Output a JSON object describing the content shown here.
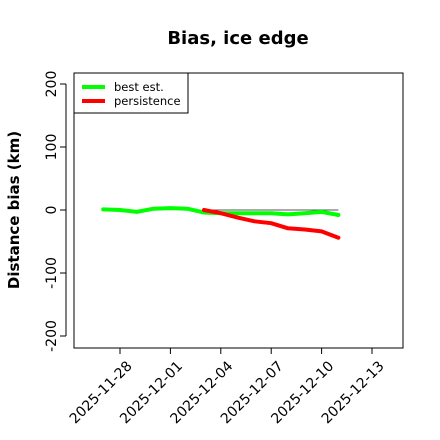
{
  "chart_data": {
    "type": "line",
    "title": "Bias, ice edge",
    "xlabel": "",
    "ylabel": "Distance bias (km)",
    "ylim": [
      -210,
      210
    ],
    "xlim": [
      "2025-11-25",
      "2025-12-14"
    ],
    "y_ticks": [
      -200,
      -100,
      0,
      100,
      200
    ],
    "y_tick_labels": [
      "-200",
      "-100",
      "0",
      "100",
      "200"
    ],
    "x_ticks": [
      "2025-11-28",
      "2025-12-01",
      "2025-12-04",
      "2025-12-07",
      "2025-12-10",
      "2025-12-13"
    ],
    "x_tick_labels": [
      "2025-11-28",
      "2025-12-01",
      "2025-12-04",
      "2025-12-07",
      "2025-12-10",
      "2025-12-13"
    ],
    "reference_line": {
      "y": 0,
      "x_from": "2025-12-03",
      "x_to": "2025-12-11",
      "color": "#555555"
    },
    "legend_position": "top-left",
    "series": [
      {
        "name": "best est.",
        "color": "#00ff00",
        "x": [
          "2025-11-27",
          "2025-11-28",
          "2025-11-29",
          "2025-11-30",
          "2025-12-01",
          "2025-12-02",
          "2025-12-03",
          "2025-12-04",
          "2025-12-05",
          "2025-12-06",
          "2025-12-07",
          "2025-12-08",
          "2025-12-09",
          "2025-12-10",
          "2025-12-11"
        ],
        "values": [
          1,
          0,
          -3,
          2,
          3,
          2,
          -4,
          -5,
          -5,
          -5,
          -5,
          -7,
          -5,
          -3,
          -8
        ]
      },
      {
        "name": "persistence",
        "color": "#ff0000",
        "x": [
          "2025-12-03",
          "2025-12-04",
          "2025-12-05",
          "2025-12-06",
          "2025-12-07",
          "2025-12-08",
          "2025-12-09",
          "2025-12-10",
          "2025-12-11"
        ],
        "values": [
          0,
          -5,
          -12,
          -18,
          -21,
          -29,
          -31,
          -34,
          -44
        ]
      }
    ]
  }
}
